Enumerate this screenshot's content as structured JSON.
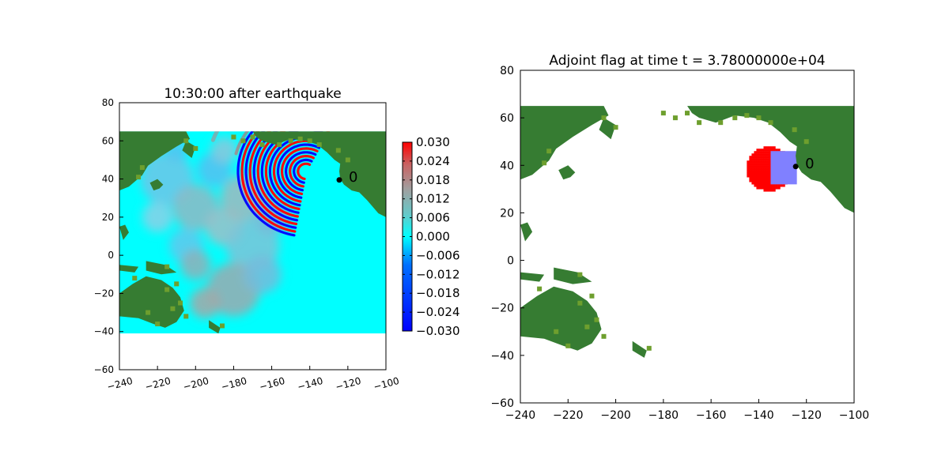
{
  "chart_data": [
    {
      "type": "heatmap",
      "title": "10:30:00 after earthquake",
      "xlim": [
        -240,
        -100
      ],
      "ylim": [
        -60,
        80
      ],
      "xticks": [
        -240,
        -220,
        -200,
        -180,
        -160,
        -140,
        -120,
        -100
      ],
      "yticks": [
        -60,
        -40,
        -20,
        0,
        20,
        40,
        60,
        80
      ],
      "xtick_labels": [
        "−240",
        "−220",
        "−200",
        "−180",
        "−160",
        "−140",
        "−120",
        "−100"
      ],
      "ytick_labels": [
        "−60",
        "−40",
        "−20",
        "0",
        "20",
        "40",
        "60",
        "80"
      ],
      "domain": {
        "xlim": [
          -240,
          -100
        ],
        "ylim": [
          -41,
          65
        ]
      },
      "colorbar": {
        "range": [
          -0.03,
          0.03
        ],
        "ticks": [
          0.03,
          0.024,
          0.018,
          0.012,
          0.006,
          0.0,
          -0.006,
          -0.012,
          -0.018,
          -0.024,
          -0.03
        ],
        "tick_labels": [
          "0.030",
          "0.024",
          "0.018",
          "0.012",
          "0.006",
          "0.000",
          "−0.006",
          "−0.012",
          "−0.018",
          "−0.024",
          "−0.030"
        ]
      },
      "gauge": {
        "label": "0",
        "lon": -124.5,
        "lat": 39.5
      },
      "colors": {
        "land": "#367c32",
        "land_light": "#6e9f2e",
        "ocean": "#00ffff",
        "wave_pos": "#ff0000",
        "wave_neg": "#0000ff"
      }
    },
    {
      "type": "heatmap",
      "title": "Adjoint flag at time t = 3.78000000e+04",
      "xlim": [
        -240,
        -100
      ],
      "ylim": [
        -60,
        80
      ],
      "xticks": [
        -240,
        -220,
        -200,
        -180,
        -160,
        -140,
        -120,
        -100
      ],
      "yticks": [
        -60,
        -40,
        -20,
        0,
        20,
        40,
        60,
        80
      ],
      "xtick_labels": [
        "−240",
        "−220",
        "−200",
        "−180",
        "−160",
        "−140",
        "−120",
        "−100"
      ],
      "ytick_labels": [
        "−60",
        "−40",
        "−20",
        "0",
        "20",
        "40",
        "60",
        "80"
      ],
      "domain": {
        "xlim": [
          -240,
          -100
        ],
        "ylim": [
          -41,
          65
        ]
      },
      "flagged_region": {
        "center": [
          -136,
          38
        ],
        "radius_deg": 10
      },
      "refined_box": {
        "x": [
          -135,
          -124
        ],
        "y": [
          32,
          46
        ]
      },
      "gauge": {
        "label": "0",
        "lon": -124.5,
        "lat": 39.5
      },
      "colors": {
        "land": "#367c32",
        "land_light": "#6e9f2e",
        "flag": "#ff0000",
        "box": "#8080ff"
      }
    }
  ]
}
